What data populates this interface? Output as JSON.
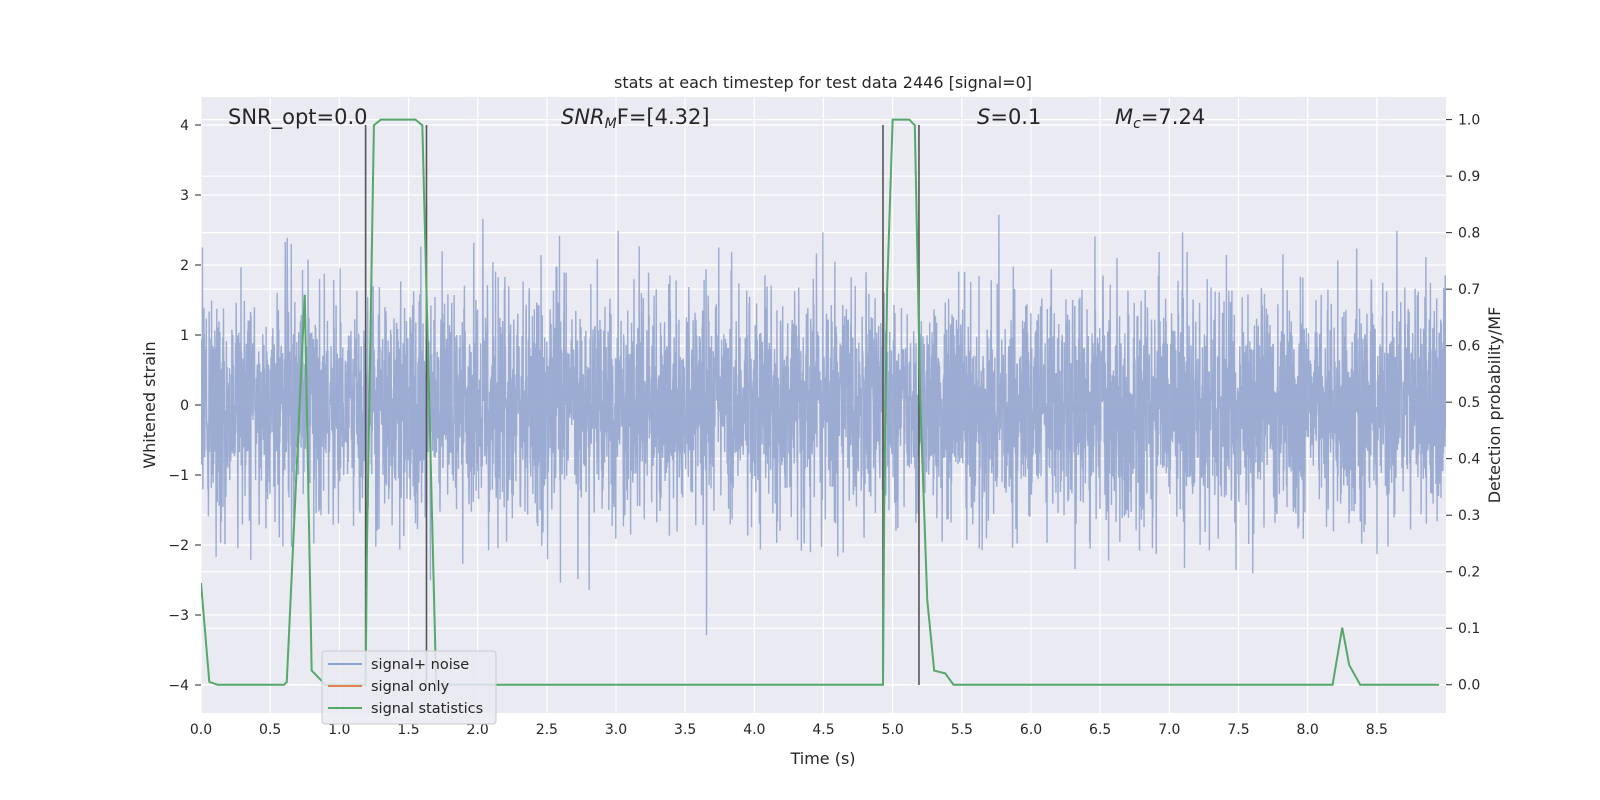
{
  "chart_data": {
    "type": "line",
    "title": "stats at each timestep for test data 2446 [signal=0]",
    "xlabel": "Time (s)",
    "ylabel": "Whitened strain",
    "ylabel_right": "Detection probability/MF",
    "xlim": [
      0,
      9
    ],
    "ylim": [
      -4.4,
      4.4
    ],
    "ylim_right": [
      -0.05,
      1.04
    ],
    "x_ticks": [
      "0.0",
      "0.5",
      "1.0",
      "1.5",
      "2.0",
      "2.5",
      "3.0",
      "3.5",
      "4.0",
      "4.5",
      "5.0",
      "5.5",
      "6.0",
      "6.5",
      "7.0",
      "7.5",
      "8.0",
      "8.5"
    ],
    "y_ticks": [
      "4",
      "3",
      "2",
      "1",
      "0",
      "−1",
      "−2",
      "−3",
      "−4"
    ],
    "y_ticks_right": [
      "1.0",
      "0.9",
      "0.8",
      "0.7",
      "0.6",
      "0.5",
      "0.4",
      "0.3",
      "0.2",
      "0.1",
      "0.0"
    ],
    "grid": true,
    "legend_position": "bottom-left",
    "annotations": {
      "snr_opt": "SNR_opt=0.0",
      "snr_mf_main": "SNR",
      "snr_mf_sub": "M",
      "snr_mf_rest": "F=[4.32]",
      "s_main": "S",
      "s_rest": "=0.1",
      "mc_main": "M",
      "mc_sub": "c",
      "mc_rest": "=7.24"
    },
    "series": [
      {
        "name": "signal+ noise",
        "color": "#8da0cb",
        "axis": "left",
        "noise_std": 0.8,
        "noise_clip": [
          -3.7,
          4.0
        ]
      },
      {
        "name": "signal only",
        "color": "#dd8452",
        "axis": "left",
        "values": []
      },
      {
        "name": "signal statistics",
        "color": "#55a868",
        "axis": "right",
        "x": [
          0.0,
          0.06,
          0.12,
          0.6,
          0.62,
          0.75,
          0.8,
          0.9,
          1.19,
          1.2,
          1.25,
          1.3,
          1.55,
          1.6,
          1.65,
          1.7,
          4.93,
          4.94,
          4.96,
          5.0,
          5.12,
          5.16,
          5.2,
          5.25,
          5.3,
          5.38,
          5.44,
          8.18,
          8.25,
          8.3,
          8.38,
          8.95
        ],
        "y": [
          0.18,
          0.005,
          0.0,
          0.0,
          0.005,
          0.69,
          0.025,
          0.0,
          0.0,
          0.25,
          0.99,
          1.0,
          1.0,
          0.99,
          0.5,
          0.0,
          0.0,
          0.34,
          0.7,
          1.0,
          1.0,
          0.99,
          0.5,
          0.15,
          0.025,
          0.02,
          0.0,
          0.0,
          0.101,
          0.035,
          0.0,
          0.0
        ]
      }
    ],
    "vertical_markers": [
      1.19,
      1.63,
      4.93,
      5.19
    ],
    "marker_color": "#555555"
  }
}
